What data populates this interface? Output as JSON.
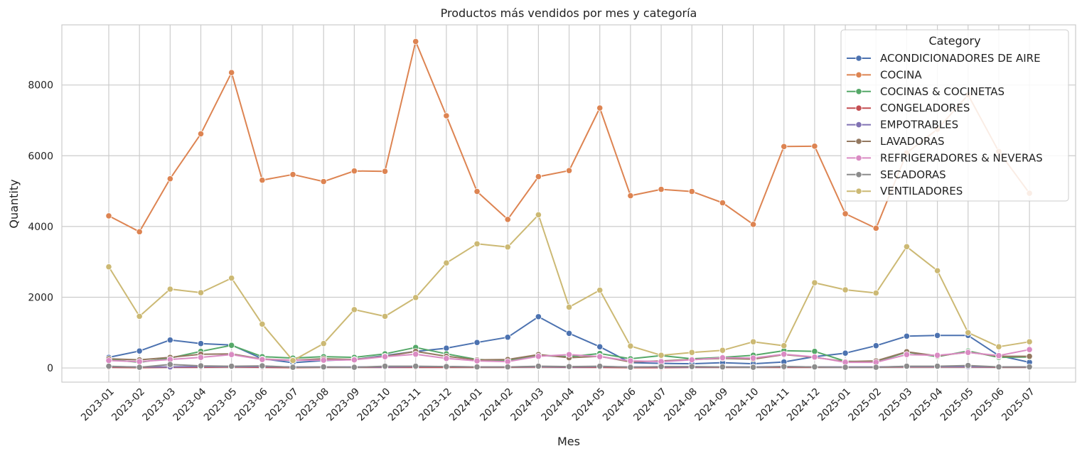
{
  "chart_data": {
    "type": "line",
    "title": "Productos más vendidos por mes y categoría",
    "xlabel": "Mes",
    "ylabel": "Quantity",
    "ylim": [
      -400,
      9700
    ],
    "yticks": [
      0,
      2000,
      4000,
      6000,
      8000
    ],
    "grid": true,
    "legend_title": "Category",
    "legend_position": "top-right",
    "x": [
      "2023-01",
      "2023-02",
      "2023-03",
      "2023-04",
      "2023-05",
      "2023-06",
      "2023-07",
      "2023-08",
      "2023-09",
      "2023-10",
      "2023-11",
      "2023-12",
      "2024-01",
      "2024-02",
      "2024-03",
      "2024-04",
      "2024-05",
      "2024-06",
      "2024-07",
      "2024-08",
      "2024-09",
      "2024-10",
      "2024-11",
      "2024-12",
      "2025-01",
      "2025-02",
      "2025-03",
      "2025-04",
      "2025-05",
      "2025-06",
      "2025-07"
    ],
    "series": [
      {
        "name": "ACONDICIONADORES DE AIRE",
        "color": "#4c72b0",
        "values": [
          300,
          480,
          790,
          690,
          650,
          260,
          150,
          210,
          240,
          350,
          470,
          560,
          720,
          870,
          1450,
          980,
          600,
          150,
          130,
          120,
          150,
          120,
          170,
          320,
          420,
          630,
          900,
          920,
          920,
          350,
          160
        ]
      },
      {
        "name": "COCINA",
        "color": "#dd8452",
        "values": [
          4300,
          3850,
          5350,
          6620,
          8350,
          5310,
          5470,
          5270,
          5570,
          5560,
          9230,
          7130,
          4990,
          4200,
          5410,
          5580,
          7350,
          4870,
          5050,
          4990,
          4670,
          4060,
          6260,
          6270,
          4360,
          3950,
          6080,
          6750,
          7720,
          6120,
          4940
        ]
      },
      {
        "name": "COCINAS & COCINETAS",
        "color": "#55a868",
        "values": [
          240,
          160,
          280,
          470,
          640,
          320,
          280,
          320,
          300,
          400,
          580,
          400,
          240,
          210,
          350,
          320,
          410,
          260,
          350,
          260,
          300,
          360,
          490,
          470,
          190,
          170,
          450,
          320,
          480,
          300,
          310
        ]
      },
      {
        "name": "CONGELADORES",
        "color": "#c44e52",
        "values": [
          20,
          10,
          20,
          20,
          30,
          20,
          10,
          20,
          20,
          20,
          20,
          20,
          20,
          20,
          30,
          20,
          20,
          10,
          10,
          20,
          20,
          20,
          20,
          20,
          20,
          20,
          30,
          30,
          30,
          20,
          20
        ]
      },
      {
        "name": "EMPOTRABLES",
        "color": "#8172b3",
        "values": [
          40,
          30,
          30,
          40,
          40,
          40,
          30,
          30,
          30,
          30,
          40,
          40,
          30,
          30,
          40,
          30,
          40,
          30,
          30,
          30,
          30,
          30,
          40,
          30,
          30,
          30,
          40,
          40,
          40,
          30,
          30
        ]
      },
      {
        "name": "LAVADORAS",
        "color": "#937860",
        "values": [
          260,
          230,
          300,
          390,
          400,
          250,
          220,
          260,
          240,
          330,
          470,
          330,
          230,
          240,
          380,
          290,
          330,
          170,
          200,
          240,
          270,
          250,
          380,
          300,
          180,
          200,
          460,
          340,
          450,
          330,
          330
        ]
      },
      {
        "name": "REFRIGERADORES & NEVERAS",
        "color": "#da8bc3",
        "values": [
          210,
          180,
          240,
          300,
          380,
          240,
          220,
          220,
          230,
          320,
          390,
          270,
          200,
          180,
          330,
          380,
          320,
          200,
          180,
          230,
          290,
          280,
          390,
          310,
          160,
          160,
          380,
          360,
          440,
          350,
          520
        ]
      },
      {
        "name": "SECADORAS",
        "color": "#8c8c8c",
        "values": [
          50,
          20,
          100,
          60,
          50,
          60,
          20,
          30,
          20,
          50,
          50,
          40,
          30,
          30,
          50,
          40,
          50,
          20,
          40,
          40,
          30,
          20,
          40,
          30,
          20,
          20,
          50,
          50,
          70,
          30,
          30
        ]
      },
      {
        "name": "VENTILADORES",
        "color": "#ccb974",
        "values": [
          2860,
          1460,
          2230,
          2130,
          2540,
          1240,
          210,
          690,
          1650,
          1460,
          1990,
          2970,
          3510,
          3420,
          4330,
          1720,
          2200,
          620,
          360,
          440,
          500,
          740,
          630,
          2410,
          2210,
          2120,
          3430,
          2750,
          1000,
          600,
          740
        ]
      }
    ]
  }
}
